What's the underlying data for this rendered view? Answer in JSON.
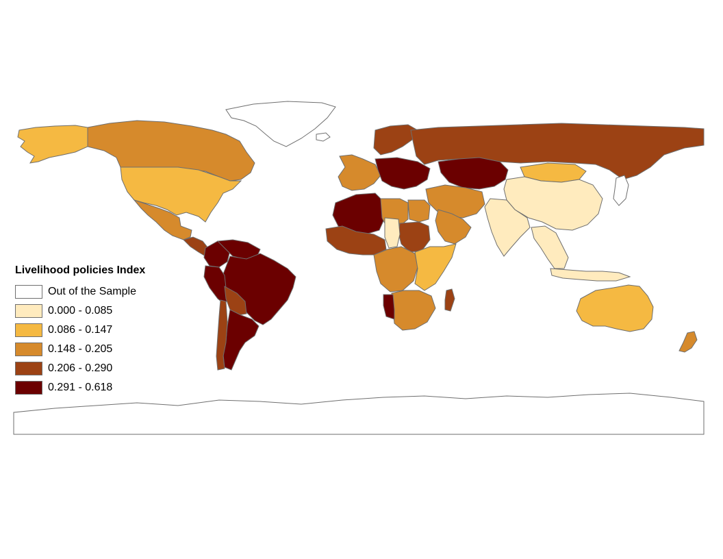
{
  "legend": {
    "title": "Livelihood policies Index",
    "classes": [
      {
        "label": "Out of the Sample",
        "color": "#ffffff"
      },
      {
        "label": "0.000 - 0.085",
        "color": "#ffebbe"
      },
      {
        "label": "0.086 - 0.147",
        "color": "#f5b942"
      },
      {
        "label": "0.148 - 0.205",
        "color": "#d68a2c"
      },
      {
        "label": "0.206 - 0.290",
        "color": "#9c4214"
      },
      {
        "label": "0.291 - 0.618",
        "color": "#6b0000"
      }
    ]
  },
  "map": {
    "border_color": "#6e6e6e",
    "regions": [
      {
        "name": "Alaska",
        "cls": 2
      },
      {
        "name": "Canada",
        "cls": 3
      },
      {
        "name": "United States",
        "cls": 2
      },
      {
        "name": "Mexico",
        "cls": 3
      },
      {
        "name": "Central America",
        "cls": 4
      },
      {
        "name": "Colombia",
        "cls": 5
      },
      {
        "name": "Venezuela",
        "cls": 5
      },
      {
        "name": "Brazil",
        "cls": 5
      },
      {
        "name": "Peru",
        "cls": 5
      },
      {
        "name": "Bolivia",
        "cls": 4
      },
      {
        "name": "Argentina",
        "cls": 5
      },
      {
        "name": "Chile",
        "cls": 4
      },
      {
        "name": "Greenland",
        "cls": 0
      },
      {
        "name": "Iceland",
        "cls": 0
      },
      {
        "name": "Western Europe",
        "cls": 3
      },
      {
        "name": "Eastern Europe",
        "cls": 5
      },
      {
        "name": "Scandinavia",
        "cls": 4
      },
      {
        "name": "Russia",
        "cls": 4
      },
      {
        "name": "Kazakhstan",
        "cls": 5
      },
      {
        "name": "Mongolia",
        "cls": 2
      },
      {
        "name": "China",
        "cls": 1
      },
      {
        "name": "India",
        "cls": 1
      },
      {
        "name": "Middle East",
        "cls": 3
      },
      {
        "name": "Arabian Peninsula",
        "cls": 3
      },
      {
        "name": "Southeast Asia",
        "cls": 1
      },
      {
        "name": "Japan",
        "cls": 0
      },
      {
        "name": "North Africa West",
        "cls": 5
      },
      {
        "name": "Libya",
        "cls": 3
      },
      {
        "name": "Egypt",
        "cls": 3
      },
      {
        "name": "Sudan",
        "cls": 4
      },
      {
        "name": "Chad",
        "cls": 1
      },
      {
        "name": "West Africa",
        "cls": 4
      },
      {
        "name": "Central Africa",
        "cls": 3
      },
      {
        "name": "East Africa",
        "cls": 2
      },
      {
        "name": "Southern Africa",
        "cls": 3
      },
      {
        "name": "Namibia",
        "cls": 5
      },
      {
        "name": "Madagascar",
        "cls": 4
      },
      {
        "name": "Australia",
        "cls": 2
      },
      {
        "name": "Indonesia",
        "cls": 1
      },
      {
        "name": "New Zealand",
        "cls": 3
      },
      {
        "name": "Antarctica",
        "cls": 0
      }
    ]
  }
}
